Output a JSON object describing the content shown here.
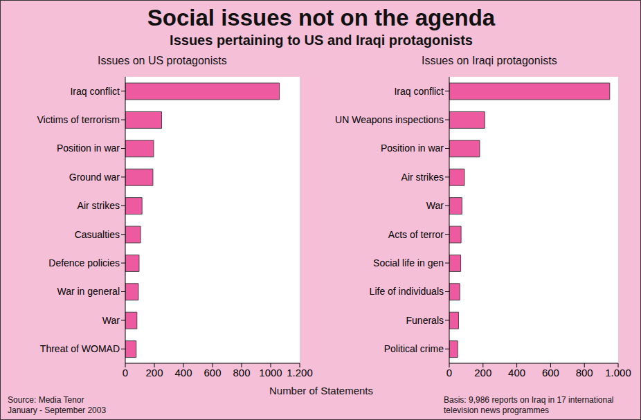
{
  "title": "Social issues not on the agenda",
  "subtitle": "Issues pertaining to US and Iraqi protagonists",
  "x_label": "Number of Statements",
  "source": "Source: Media Tenor",
  "period": "January - September 2003",
  "basis": "Basis: 9,986 reports on Iraq in 17 international television news programmes",
  "chart_data": [
    {
      "type": "bar",
      "orientation": "horizontal",
      "title": "Issues on US protagonists",
      "categories": [
        "Iraq conflict",
        "Victims of terrorism",
        "Position in war",
        "Ground war",
        "Air strikes",
        "Casualties",
        "Defence policies",
        "War in general",
        "War",
        "Threat of WOMAD"
      ],
      "values": [
        1060,
        250,
        195,
        190,
        115,
        105,
        95,
        90,
        80,
        75
      ],
      "color": "#ee5a9f",
      "xlim": [
        0,
        1200
      ],
      "xticks": [
        0,
        200,
        400,
        600,
        800,
        1000,
        {
          "value": 1200,
          "label": "1.200"
        }
      ],
      "grid": false
    },
    {
      "type": "bar",
      "orientation": "horizontal",
      "title": "Issues on Iraqi protagonists",
      "categories": [
        "Iraq conflict",
        "UN Weapons inspections",
        "Position in war",
        "Air strikes",
        "War",
        "Acts of terror",
        "Social life in gen",
        "Life of individuals",
        "Funerals",
        "Political crime"
      ],
      "values": [
        950,
        210,
        180,
        90,
        75,
        70,
        68,
        62,
        55,
        50
      ],
      "color": "#ee5a9f",
      "xlim": [
        0,
        1000
      ],
      "xticks": [
        0,
        200,
        400,
        600,
        800,
        {
          "value": 1000,
          "label": "1.000"
        }
      ],
      "grid": false
    }
  ]
}
